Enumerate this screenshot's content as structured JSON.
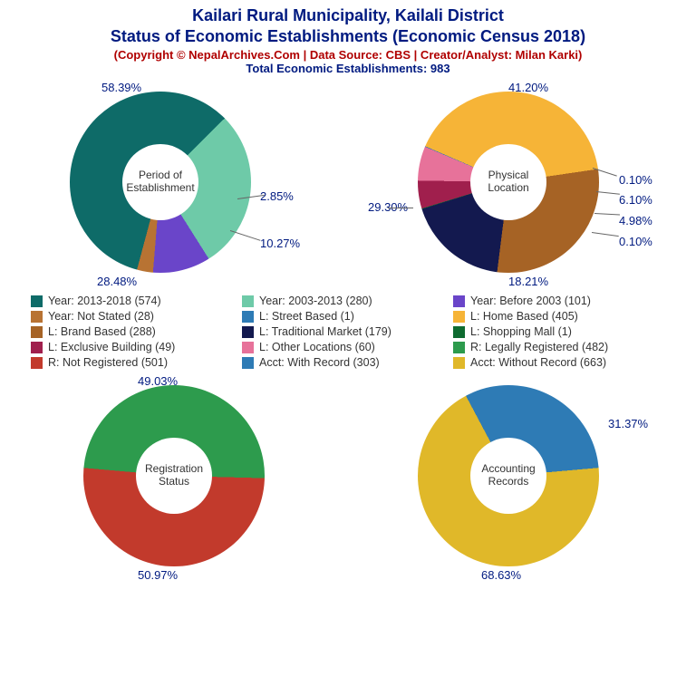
{
  "header": {
    "title_line1": "Kailari Rural Municipality, Kailali District",
    "title_line2": "Status of Economic Establishments (Economic Census 2018)",
    "title_color": "#001a80",
    "subtitle": "(Copyright © NepalArchives.Com | Data Source: CBS | Creator/Analyst: Milan Karki)",
    "subtitle_color": "#b00000",
    "total": "Total Economic Establishments: 983",
    "total_color": "#001a80"
  },
  "label_color": "#001a80",
  "charts": {
    "period": {
      "center_label": "Period of\nEstablishment",
      "slices": [
        {
          "value": 58.39,
          "color": "#0e6b68",
          "label": "58.39%"
        },
        {
          "value": 28.48,
          "color": "#6ecaa8",
          "label": "28.48%"
        },
        {
          "value": 10.27,
          "color": "#6a45c9",
          "label": "10.27%"
        },
        {
          "value": 2.85,
          "color": "#b87333",
          "label": "2.85%"
        }
      ]
    },
    "location": {
      "center_label": "Physical\nLocation",
      "slices": [
        {
          "value": 0.1,
          "color": "#2e7bb5",
          "label": "0.10%"
        },
        {
          "value": 41.2,
          "color": "#f6b437",
          "label": "41.20%"
        },
        {
          "value": 29.3,
          "color": "#a66325",
          "label": "29.30%"
        },
        {
          "value": 18.21,
          "color": "#13194f",
          "label": "18.21%"
        },
        {
          "value": 0.1,
          "color": "#0e6b30",
          "label": "0.10%"
        },
        {
          "value": 4.98,
          "color": "#a01f4d",
          "label": "4.98%"
        },
        {
          "value": 6.1,
          "color": "#e7729a",
          "label": "6.10%"
        }
      ]
    },
    "registration": {
      "center_label": "Registration\nStatus",
      "slices": [
        {
          "value": 49.03,
          "color": "#2d9b4d",
          "label": "49.03%"
        },
        {
          "value": 50.97,
          "color": "#c23a2c",
          "label": "50.97%"
        }
      ]
    },
    "accounting": {
      "center_label": "Accounting\nRecords",
      "slices": [
        {
          "value": 31.37,
          "color": "#2e7bb5",
          "label": "31.37%"
        },
        {
          "value": 68.63,
          "color": "#e0b829",
          "label": "68.63%"
        }
      ]
    }
  },
  "legend": [
    [
      {
        "color": "#0e6b68",
        "label": "Year: 2013-2018 (574)"
      },
      {
        "color": "#6ecaa8",
        "label": "Year: 2003-2013 (280)"
      },
      {
        "color": "#6a45c9",
        "label": "Year: Before 2003 (101)"
      }
    ],
    [
      {
        "color": "#b87333",
        "label": "Year: Not Stated (28)"
      },
      {
        "color": "#2e7bb5",
        "label": "L: Street Based (1)"
      },
      {
        "color": "#f6b437",
        "label": "L: Home Based (405)"
      }
    ],
    [
      {
        "color": "#a66325",
        "label": "L: Brand Based (288)"
      },
      {
        "color": "#13194f",
        "label": "L: Traditional Market (179)"
      },
      {
        "color": "#0e6b30",
        "label": "L: Shopping Mall (1)"
      }
    ],
    [
      {
        "color": "#a01f4d",
        "label": "L: Exclusive Building (49)"
      },
      {
        "color": "#e7729a",
        "label": "L: Other Locations (60)"
      },
      {
        "color": "#2d9b4d",
        "label": "R: Legally Registered (482)"
      }
    ],
    [
      {
        "color": "#c23a2c",
        "label": "R: Not Registered (501)"
      },
      {
        "color": "#2e7bb5",
        "label": "Acct: With Record (303)"
      },
      {
        "color": "#e0b829",
        "label": "Acct: Without Record (663)"
      }
    ]
  ]
}
